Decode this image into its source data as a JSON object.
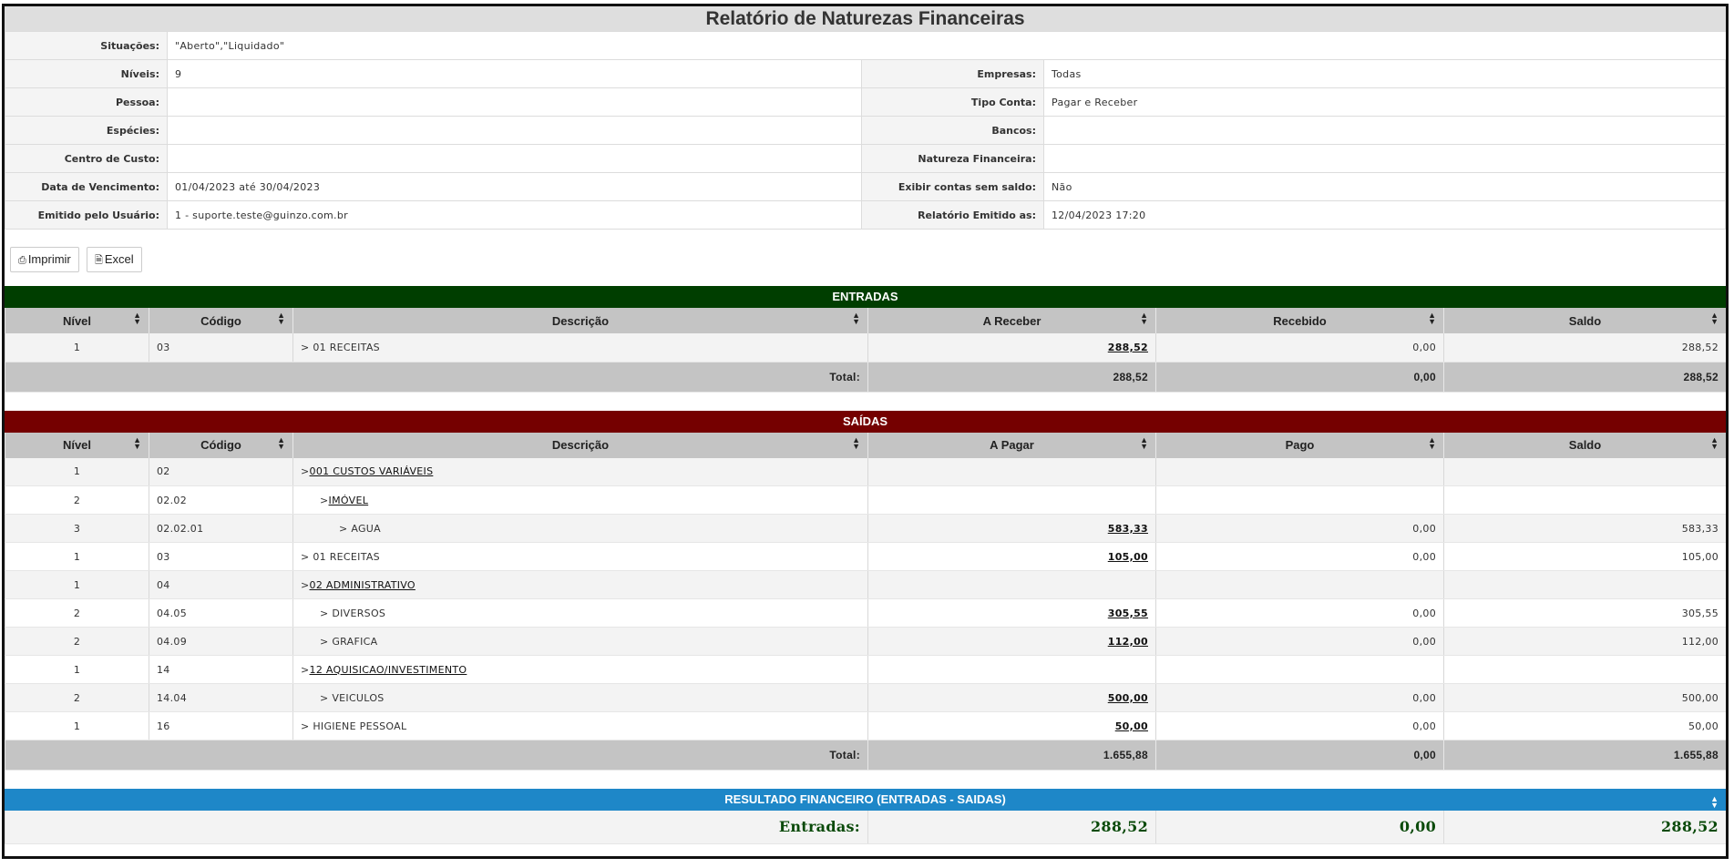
{
  "report": {
    "title": "Relatório de Naturezas Financeiras"
  },
  "filters": {
    "situacoes_label": "Situações:",
    "situacoes_value": "\"Aberto\",\"Liquidado\"",
    "niveis_label": "Níveis:",
    "niveis_value": "9",
    "empresas_label": "Empresas:",
    "empresas_value": "Todas",
    "pessoa_label": "Pessoa:",
    "pessoa_value": "",
    "tipo_conta_label": "Tipo Conta:",
    "tipo_conta_value": "Pagar e Receber",
    "especies_label": "Espécies:",
    "especies_value": "",
    "bancos_label": "Bancos:",
    "bancos_value": "",
    "centro_custo_label": "Centro de Custo:",
    "centro_custo_value": "",
    "natureza_label": "Natureza Financeira:",
    "natureza_value": "",
    "vencimento_label": "Data de Vencimento:",
    "vencimento_value": "01/04/2023 até 30/04/2023",
    "exibir_label": "Exibir contas sem saldo:",
    "exibir_value": "Não",
    "usuario_label": "Emitido pelo Usuário:",
    "usuario_value": "1 - suporte.teste@guinzo.com.br",
    "emitido_label": "Relatório Emitido as:",
    "emitido_value": "12/04/2023 17:20"
  },
  "toolbar": {
    "print_label": "Imprimir",
    "excel_label": "Excel"
  },
  "entradas": {
    "header": "ENTRADAS",
    "columns": [
      "Nível",
      "Código",
      "Descrição",
      "A Receber",
      "Recebido",
      "Saldo"
    ],
    "rows": [
      {
        "nivel": "1",
        "codigo": "03",
        "descricao": "> 01 RECEITAS",
        "valor": "288,52",
        "pago": "0,00",
        "saldo": "288,52"
      }
    ],
    "total_label": "Total:",
    "total_valor": "288,52",
    "total_pago": "0,00",
    "total_saldo": "288,52"
  },
  "saidas": {
    "header": "SAÍDAS",
    "columns": [
      "Nível",
      "Código",
      "Descrição",
      "A Pagar",
      "Pago",
      "Saldo"
    ],
    "rows": [
      {
        "nivel": "1",
        "codigo": "02",
        "prefix": ">",
        "descricao": "001 CUSTOS VARIÁVEIS",
        "linked": true,
        "indent": 0,
        "valor": "",
        "pago": "",
        "saldo": ""
      },
      {
        "nivel": "2",
        "codigo": "02.02",
        "prefix": ">",
        "descricao": "IMÓVEL",
        "linked": true,
        "indent": 1,
        "valor": "",
        "pago": "",
        "saldo": ""
      },
      {
        "nivel": "3",
        "codigo": "02.02.01",
        "prefix": "> ",
        "descricao": "AGUA",
        "linked": false,
        "indent": 2,
        "valor": "583,33",
        "pago": "0,00",
        "saldo": "583,33"
      },
      {
        "nivel": "1",
        "codigo": "03",
        "prefix": "> ",
        "descricao": "01 RECEITAS",
        "linked": false,
        "indent": 0,
        "valor": "105,00",
        "pago": "0,00",
        "saldo": "105,00"
      },
      {
        "nivel": "1",
        "codigo": "04",
        "prefix": ">",
        "descricao": "02 ADMINISTRATIVO",
        "linked": true,
        "indent": 0,
        "valor": "",
        "pago": "",
        "saldo": ""
      },
      {
        "nivel": "2",
        "codigo": "04.05",
        "prefix": "> ",
        "descricao": "DIVERSOS",
        "linked": false,
        "indent": 1,
        "valor": "305,55",
        "pago": "0,00",
        "saldo": "305,55"
      },
      {
        "nivel": "2",
        "codigo": "04.09",
        "prefix": "> ",
        "descricao": "GRAFICA",
        "linked": false,
        "indent": 1,
        "valor": "112,00",
        "pago": "0,00",
        "saldo": "112,00"
      },
      {
        "nivel": "1",
        "codigo": "14",
        "prefix": ">",
        "descricao": "12 AQUISICAO/INVESTIMENTO",
        "linked": true,
        "indent": 0,
        "valor": "",
        "pago": "",
        "saldo": ""
      },
      {
        "nivel": "2",
        "codigo": "14.04",
        "prefix": "> ",
        "descricao": "VEICULOS",
        "linked": false,
        "indent": 1,
        "valor": "500,00",
        "pago": "0,00",
        "saldo": "500,00"
      },
      {
        "nivel": "1",
        "codigo": "16",
        "prefix": "> ",
        "descricao": "HIGIENE PESSOAL",
        "linked": false,
        "indent": 0,
        "valor": "50,00",
        "pago": "0,00",
        "saldo": "50,00"
      }
    ],
    "total_label": "Total:",
    "total_valor": "1.655,88",
    "total_pago": "0,00",
    "total_saldo": "1.655,88"
  },
  "resultado": {
    "header": "RESULTADO FINANCEIRO (ENTRADAS - SAIDAS)",
    "entradas_label": "Entradas:",
    "entradas_valor": "288,52",
    "entradas_pago": "0,00",
    "entradas_saldo": "288,52"
  },
  "colors": {
    "entradas": "#003e00",
    "saidas": "#750000",
    "resultado": "#1e87c8"
  }
}
